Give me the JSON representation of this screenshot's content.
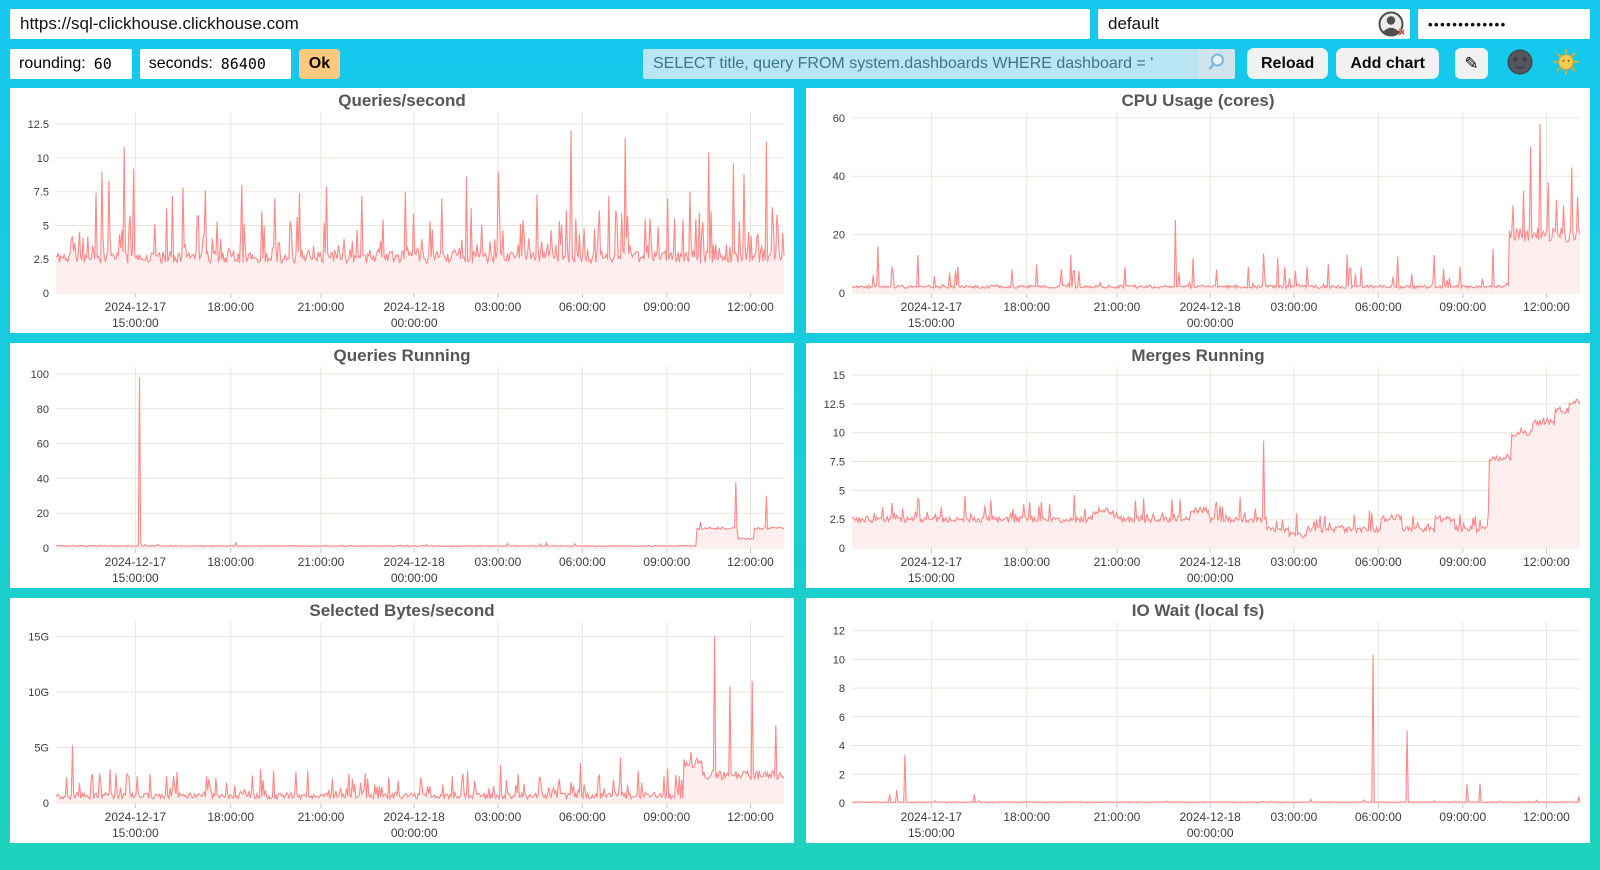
{
  "topbar": {
    "url": "https://sql-clickhouse.clickhouse.com",
    "user": "default",
    "password_masked": "•••••••••••••",
    "rounding_label": "rounding:",
    "rounding_value": "60",
    "seconds_label": "seconds:",
    "seconds_value": "86400",
    "ok_label": "Ok",
    "search_query": "SELECT title, query FROM system.dashboards WHERE dashboard = '",
    "reload_label": "Reload",
    "add_chart_label": "Add chart",
    "edit_icon": "✎"
  },
  "colors": {
    "background_top": "#14C8F1",
    "background_bottom": "#1ED2BD",
    "line": "#FF8888",
    "fill": "#FFEEEE",
    "grid": "#EAE6D9",
    "axis_text": "#3C3C3C",
    "tick_stub": "#C9C9C9",
    "title": "#565656",
    "ok_button": "#FFC97E",
    "query_input_bg": "#B9E5F4",
    "query_input_text": "#3D7488"
  },
  "chart_data": [
    {
      "type": "line",
      "title": "Queries/second",
      "ylim": [
        0,
        13.4
      ],
      "y_ticks": [
        {
          "v": 0,
          "label": "0"
        },
        {
          "v": 2.5,
          "label": "2.5"
        },
        {
          "v": 5,
          "label": "5"
        },
        {
          "v": 7.5,
          "label": "7.5"
        },
        {
          "v": 10,
          "label": "10"
        },
        {
          "v": 12.5,
          "label": "12.5"
        }
      ],
      "x_ticks": [
        {
          "frac": 0.109,
          "labels": [
            "2024-12-17",
            "15:00:00"
          ]
        },
        {
          "frac": 0.24,
          "labels": [
            "18:00:00"
          ]
        },
        {
          "frac": 0.364,
          "labels": [
            "21:00:00"
          ]
        },
        {
          "frac": 0.492,
          "labels": [
            "2024-12-18",
            "00:00:00"
          ]
        },
        {
          "frac": 0.607,
          "labels": [
            "03:00:00"
          ]
        },
        {
          "frac": 0.723,
          "labels": [
            "06:00:00"
          ]
        },
        {
          "frac": 0.839,
          "labels": [
            "09:00:00"
          ]
        },
        {
          "frac": 0.954,
          "labels": [
            "12:00:00"
          ]
        }
      ],
      "gen": {
        "seed": 11,
        "n": 620,
        "base": 2.2,
        "jitter": 0.9,
        "rate": 0.35,
        "amp": 3.5,
        "pow": 2.4,
        "spikes": [
          [
            0.055,
            7.4
          ],
          [
            0.063,
            9.0
          ],
          [
            0.073,
            8.3
          ],
          [
            0.094,
            10.8
          ],
          [
            0.107,
            9.2
          ],
          [
            0.16,
            7.2
          ],
          [
            0.175,
            7.8
          ],
          [
            0.205,
            7.6
          ],
          [
            0.256,
            8.0
          ],
          [
            0.3,
            7.0
          ],
          [
            0.335,
            7.4
          ],
          [
            0.372,
            7.9
          ],
          [
            0.42,
            7.2
          ],
          [
            0.48,
            7.5
          ],
          [
            0.53,
            7.0
          ],
          [
            0.564,
            8.6
          ],
          [
            0.607,
            9.0
          ],
          [
            0.66,
            7.3
          ],
          [
            0.708,
            12.0
          ],
          [
            0.76,
            7.2
          ],
          [
            0.782,
            11.5
          ],
          [
            0.84,
            7.0
          ],
          [
            0.87,
            7.5
          ],
          [
            0.897,
            10.4
          ],
          [
            0.93,
            9.6
          ],
          [
            0.945,
            8.8
          ],
          [
            0.976,
            11.2
          ]
        ]
      }
    },
    {
      "type": "line",
      "title": "CPU Usage (cores)",
      "ylim": [
        0,
        62
      ],
      "y_ticks": [
        {
          "v": 0,
          "label": "0"
        },
        {
          "v": 20,
          "label": "20"
        },
        {
          "v": 40,
          "label": "40"
        },
        {
          "v": 60,
          "label": "60"
        }
      ],
      "x_ticks": [
        {
          "frac": 0.109,
          "labels": [
            "2024-12-17",
            "15:00:00"
          ]
        },
        {
          "frac": 0.24,
          "labels": [
            "18:00:00"
          ]
        },
        {
          "frac": 0.364,
          "labels": [
            "21:00:00"
          ]
        },
        {
          "frac": 0.492,
          "labels": [
            "2024-12-18",
            "00:00:00"
          ]
        },
        {
          "frac": 0.607,
          "labels": [
            "03:00:00"
          ]
        },
        {
          "frac": 0.723,
          "labels": [
            "06:00:00"
          ]
        },
        {
          "frac": 0.839,
          "labels": [
            "09:00:00"
          ]
        },
        {
          "frac": 0.954,
          "labels": [
            "12:00:00"
          ]
        }
      ],
      "gen": {
        "seed": 22,
        "n": 620,
        "base": 1.6,
        "jitter": 1.1,
        "rate": 0.15,
        "amp": 8,
        "pow": 3,
        "plateaus": [
          [
            0.902,
            1.001,
            19
          ]
        ],
        "pjitter": 5,
        "spikes": [
          [
            0.035,
            16
          ],
          [
            0.055,
            9
          ],
          [
            0.09,
            13
          ],
          [
            0.145,
            9
          ],
          [
            0.22,
            8
          ],
          [
            0.3,
            13
          ],
          [
            0.375,
            9
          ],
          [
            0.445,
            25
          ],
          [
            0.468,
            12
          ],
          [
            0.5,
            8
          ],
          [
            0.545,
            9
          ],
          [
            0.565,
            13.5
          ],
          [
            0.585,
            12
          ],
          [
            0.625,
            9
          ],
          [
            0.655,
            10
          ],
          [
            0.68,
            13
          ],
          [
            0.7,
            9
          ],
          [
            0.75,
            12.5
          ],
          [
            0.8,
            13
          ],
          [
            0.835,
            9
          ],
          [
            0.88,
            15
          ],
          [
            0.908,
            30
          ],
          [
            0.922,
            35
          ],
          [
            0.932,
            50
          ],
          [
            0.945,
            58
          ],
          [
            0.957,
            38
          ],
          [
            0.968,
            32
          ],
          [
            0.978,
            30
          ],
          [
            0.988,
            43
          ],
          [
            0.997,
            33
          ]
        ]
      }
    },
    {
      "type": "line",
      "title": "Queries Running",
      "ylim": [
        0,
        104
      ],
      "y_ticks": [
        {
          "v": 0,
          "label": "0"
        },
        {
          "v": 20,
          "label": "20"
        },
        {
          "v": 40,
          "label": "40"
        },
        {
          "v": 60,
          "label": "60"
        },
        {
          "v": 80,
          "label": "80"
        },
        {
          "v": 100,
          "label": "100"
        }
      ],
      "x_ticks": [
        {
          "frac": 0.109,
          "labels": [
            "2024-12-17",
            "15:00:00"
          ]
        },
        {
          "frac": 0.24,
          "labels": [
            "18:00:00"
          ]
        },
        {
          "frac": 0.364,
          "labels": [
            "21:00:00"
          ]
        },
        {
          "frac": 0.492,
          "labels": [
            "2024-12-18",
            "00:00:00"
          ]
        },
        {
          "frac": 0.607,
          "labels": [
            "03:00:00"
          ]
        },
        {
          "frac": 0.723,
          "labels": [
            "06:00:00"
          ]
        },
        {
          "frac": 0.839,
          "labels": [
            "09:00:00"
          ]
        },
        {
          "frac": 0.954,
          "labels": [
            "12:00:00"
          ]
        }
      ],
      "gen": {
        "seed": 33,
        "n": 620,
        "base": 0.9,
        "jitter": 0.5,
        "rate": 0.04,
        "amp": 1.8,
        "pow": 2,
        "plateaus": [
          [
            0.879,
            0.936,
            11
          ],
          [
            0.936,
            0.958,
            5
          ],
          [
            0.958,
            1.001,
            11
          ]
        ],
        "pjitter": 1.5,
        "spikes": [
          [
            0.115,
            98
          ],
          [
            0.886,
            15
          ],
          [
            0.934,
            38
          ],
          [
            0.976,
            30
          ]
        ]
      }
    },
    {
      "type": "line",
      "title": "Merges Running",
      "ylim": [
        0,
        15.7
      ],
      "y_ticks": [
        {
          "v": 0,
          "label": "0"
        },
        {
          "v": 2.5,
          "label": "2.5"
        },
        {
          "v": 5,
          "label": "5"
        },
        {
          "v": 7.5,
          "label": "7.5"
        },
        {
          "v": 10,
          "label": "10"
        },
        {
          "v": 12.5,
          "label": "12.5"
        },
        {
          "v": 15,
          "label": "15"
        }
      ],
      "x_ticks": [
        {
          "frac": 0.109,
          "labels": [
            "2024-12-17",
            "15:00:00"
          ]
        },
        {
          "frac": 0.24,
          "labels": [
            "18:00:00"
          ]
        },
        {
          "frac": 0.364,
          "labels": [
            "21:00:00"
          ]
        },
        {
          "frac": 0.492,
          "labels": [
            "2024-12-18",
            "00:00:00"
          ]
        },
        {
          "frac": 0.607,
          "labels": [
            "03:00:00"
          ]
        },
        {
          "frac": 0.723,
          "labels": [
            "06:00:00"
          ]
        },
        {
          "frac": 0.839,
          "labels": [
            "09:00:00"
          ]
        },
        {
          "frac": 0.954,
          "labels": [
            "12:00:00"
          ]
        }
      ],
      "gen": {
        "seed": 44,
        "n": 620,
        "base": 2.2,
        "jitter": 0.55,
        "rate": 0.2,
        "amp": 1.6,
        "pow": 2,
        "segments": [
          [
            0,
            0.57,
            2.2
          ],
          [
            0.57,
            0.875,
            1.35
          ]
        ],
        "plateaus": [
          [
            0.33,
            0.36,
            3.1
          ],
          [
            0.465,
            0.49,
            3.2
          ],
          [
            0.6,
            0.625,
            1.0
          ],
          [
            0.726,
            0.756,
            2.5
          ],
          [
            0.8,
            0.828,
            2.4
          ],
          [
            0.875,
            0.905,
            7.7
          ],
          [
            0.905,
            0.935,
            9.8
          ],
          [
            0.935,
            0.965,
            10.8
          ],
          [
            0.965,
            0.985,
            11.8
          ],
          [
            0.985,
            1.001,
            12.6
          ]
        ],
        "pjitter": 0.6,
        "spikes": [
          [
            0.09,
            4.3
          ],
          [
            0.155,
            4.5
          ],
          [
            0.19,
            4.2
          ],
          [
            0.26,
            4.0
          ],
          [
            0.305,
            4.6
          ],
          [
            0.4,
            4.3
          ],
          [
            0.44,
            4.2
          ],
          [
            0.5,
            4.0
          ],
          [
            0.533,
            4.4
          ],
          [
            0.565,
            9.3
          ],
          [
            0.61,
            3.0
          ],
          [
            0.65,
            2.8
          ],
          [
            0.69,
            2.9
          ],
          [
            0.77,
            2.8
          ],
          [
            0.92,
            10.4
          ],
          [
            0.95,
            11.3
          ],
          [
            0.97,
            12.1
          ],
          [
            0.995,
            12.9
          ]
        ]
      }
    },
    {
      "type": "line",
      "title": "Selected Bytes/second",
      "ylim": [
        0,
        16.3
      ],
      "y_ticks": [
        {
          "v": 0,
          "label": "0"
        },
        {
          "v": 5,
          "label": "5G"
        },
        {
          "v": 10,
          "label": "10G"
        },
        {
          "v": 15,
          "label": "15G"
        }
      ],
      "x_ticks": [
        {
          "frac": 0.109,
          "labels": [
            "2024-12-17",
            "15:00:00"
          ]
        },
        {
          "frac": 0.24,
          "labels": [
            "18:00:00"
          ]
        },
        {
          "frac": 0.364,
          "labels": [
            "21:00:00"
          ]
        },
        {
          "frac": 0.492,
          "labels": [
            "2024-12-18",
            "00:00:00"
          ]
        },
        {
          "frac": 0.607,
          "labels": [
            "03:00:00"
          ]
        },
        {
          "frac": 0.723,
          "labels": [
            "06:00:00"
          ]
        },
        {
          "frac": 0.839,
          "labels": [
            "09:00:00"
          ]
        },
        {
          "frac": 0.954,
          "labels": [
            "12:00:00"
          ]
        }
      ],
      "gen": {
        "seed": 55,
        "n": 620,
        "base": 0.35,
        "jitter": 0.55,
        "rate": 0.3,
        "amp": 2.4,
        "pow": 2.6,
        "plateaus": [
          [
            0.862,
            0.888,
            3.4
          ],
          [
            0.888,
            1.001,
            2.3
          ]
        ],
        "pjitter": 0.9,
        "spikes": [
          [
            0.022,
            5.2
          ],
          [
            0.05,
            2.6
          ],
          [
            0.075,
            3.0
          ],
          [
            0.1,
            2.4
          ],
          [
            0.13,
            2.6
          ],
          [
            0.21,
            2.2
          ],
          [
            0.27,
            2.0
          ],
          [
            0.33,
            2.8
          ],
          [
            0.38,
            2.2
          ],
          [
            0.425,
            2.7
          ],
          [
            0.47,
            2.0
          ],
          [
            0.5,
            2.3
          ],
          [
            0.545,
            2.4
          ],
          [
            0.565,
            2.9
          ],
          [
            0.61,
            3.4
          ],
          [
            0.635,
            2.6
          ],
          [
            0.665,
            2.2
          ],
          [
            0.72,
            3.6
          ],
          [
            0.745,
            2.3
          ],
          [
            0.775,
            4.1
          ],
          [
            0.8,
            2.9
          ],
          [
            0.835,
            2.4
          ],
          [
            0.872,
            4.6
          ],
          [
            0.905,
            15.0
          ],
          [
            0.925,
            10.5
          ],
          [
            0.957,
            11.0
          ],
          [
            0.988,
            7.0
          ]
        ]
      }
    },
    {
      "type": "line",
      "title": "IO Wait (local fs)",
      "ylim": [
        0,
        12.6
      ],
      "y_ticks": [
        {
          "v": 0,
          "label": "0"
        },
        {
          "v": 2,
          "label": "2"
        },
        {
          "v": 4,
          "label": "4"
        },
        {
          "v": 6,
          "label": "6"
        },
        {
          "v": 8,
          "label": "8"
        },
        {
          "v": 10,
          "label": "10"
        },
        {
          "v": 12,
          "label": "12"
        }
      ],
      "x_ticks": [
        {
          "frac": 0.109,
          "labels": [
            "2024-12-17",
            "15:00:00"
          ]
        },
        {
          "frac": 0.24,
          "labels": [
            "18:00:00"
          ]
        },
        {
          "frac": 0.364,
          "labels": [
            "21:00:00"
          ]
        },
        {
          "frac": 0.492,
          "labels": [
            "2024-12-18",
            "00:00:00"
          ]
        },
        {
          "frac": 0.607,
          "labels": [
            "03:00:00"
          ]
        },
        {
          "frac": 0.723,
          "labels": [
            "06:00:00"
          ]
        },
        {
          "frac": 0.839,
          "labels": [
            "09:00:00"
          ]
        },
        {
          "frac": 0.954,
          "labels": [
            "12:00:00"
          ]
        }
      ],
      "gen": {
        "seed": 66,
        "n": 620,
        "base": 0.04,
        "jitter": 0.04,
        "rate": 0.02,
        "amp": 0.15,
        "pow": 2,
        "spikes": [
          [
            0.052,
            0.6
          ],
          [
            0.062,
            0.9
          ],
          [
            0.072,
            3.35
          ],
          [
            0.115,
            0.15
          ],
          [
            0.168,
            0.6
          ],
          [
            0.175,
            0.15
          ],
          [
            0.238,
            0.1
          ],
          [
            0.3,
            0.08
          ],
          [
            0.38,
            0.08
          ],
          [
            0.45,
            0.1
          ],
          [
            0.52,
            0.07
          ],
          [
            0.575,
            0.1
          ],
          [
            0.63,
            0.25
          ],
          [
            0.655,
            0.1
          ],
          [
            0.702,
            0.2
          ],
          [
            0.715,
            10.3
          ],
          [
            0.762,
            5.05
          ],
          [
            0.8,
            0.15
          ],
          [
            0.845,
            1.3
          ],
          [
            0.862,
            1.35
          ],
          [
            0.93,
            0.1
          ],
          [
            0.975,
            0.12
          ],
          [
            0.998,
            0.45
          ]
        ]
      }
    }
  ]
}
